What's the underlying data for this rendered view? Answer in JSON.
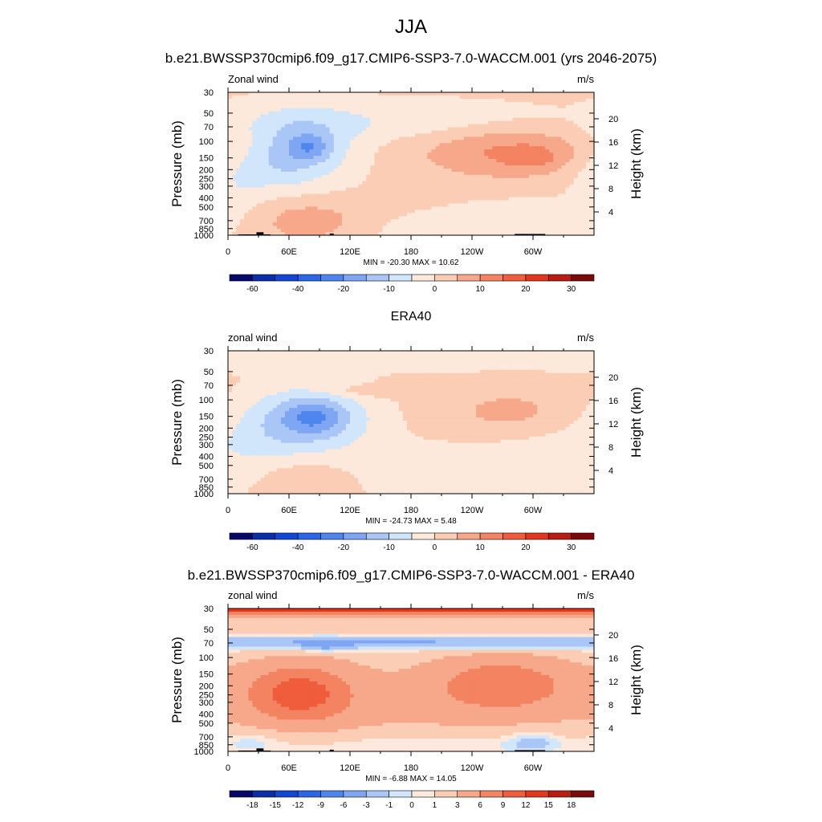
{
  "figure": {
    "title": "JJA",
    "subtitle": "b.e21.BWSSP370cmip6.f09_g17.CMIP6-SSP3-7.0-WACCM.001 (yrs 2046-2075)",
    "panel2_title": "ERA40",
    "panel3_title": "b.e21.BWSSP370cmip6.f09_g17.CMIP6-SSP3-7.0-WACCM.001 - ERA40"
  },
  "colors": {
    "palette": [
      "#08086b",
      "#0a2ea8",
      "#1446d6",
      "#2a66e6",
      "#4f86ee",
      "#7ea6f2",
      "#aac6f6",
      "#d2e6fb",
      "#fde8dc",
      "#fbcdb4",
      "#f7a88a",
      "#f38361",
      "#ef5d3c",
      "#e2361e",
      "#b81d14",
      "#7a0a0a"
    ],
    "terrain": "#000000"
  },
  "chart_data": [
    {
      "type": "heatmap",
      "name": "model",
      "left_label": "Zonal wind",
      "right_label": "m/s",
      "ylabel": "Pressure (mb)",
      "ylabel_right": "Height (km)",
      "x_ticks": [
        "0",
        "60E",
        "120E",
        "180",
        "120W",
        "60W"
      ],
      "x_tick_lons": [
        0,
        60,
        120,
        180,
        240,
        300
      ],
      "y_ticks": [
        "30",
        "50",
        "70",
        "100",
        "150",
        "200",
        "250",
        "300",
        "400",
        "500",
        "700",
        "850",
        "1000"
      ],
      "y_tick_values": [
        30,
        50,
        70,
        100,
        150,
        200,
        250,
        300,
        400,
        500,
        700,
        850,
        1000
      ],
      "height_ticks": [
        "4",
        "8",
        "12",
        "16",
        "20"
      ],
      "height_tick_values": [
        4,
        8,
        12,
        16,
        20
      ],
      "xlim": [
        0,
        360
      ],
      "ylim": [
        1000,
        30
      ],
      "stats": "MIN = -20.30  MAX =  10.62",
      "min": -20.3,
      "max": 10.62,
      "colorbar_labels": [
        "-60",
        "-40",
        "-20",
        "-10",
        "0",
        "10",
        "20",
        "30"
      ],
      "colorbar_levels": [
        -70,
        -60,
        -50,
        -40,
        -30,
        -20,
        -15,
        -10,
        -5,
        0,
        5,
        10,
        15,
        20,
        25,
        30
      ],
      "field": {
        "background": 1,
        "features": [
          {
            "lon": 70,
            "p": 120,
            "dlon": 38,
            "dlp": 0.62,
            "amp": -12
          },
          {
            "lon": 80,
            "p": 115,
            "dlon": 14,
            "dlp": 0.22,
            "amp": -9
          },
          {
            "lon": 40,
            "p": 200,
            "dlon": 30,
            "dlp": 0.45,
            "amp": -4
          },
          {
            "lon": 150,
            "p": 60,
            "dlon": 130,
            "dlp": 0.35,
            "amp": -5
          },
          {
            "lon": 275,
            "p": 130,
            "dlon": 60,
            "dlp": 0.45,
            "amp": 10
          },
          {
            "lon": 300,
            "p": 150,
            "dlon": 16,
            "dlp": 0.18,
            "amp": 5
          },
          {
            "lon": 75,
            "p": 700,
            "dlon": 40,
            "dlp": 0.4,
            "amp": 7
          },
          {
            "lon": 300,
            "p": 700,
            "dlon": 60,
            "dlp": 0.35,
            "amp": -5
          },
          {
            "lon": 190,
            "p": 900,
            "dlon": 40,
            "dlp": 0.25,
            "amp": -3
          },
          {
            "lon": 5,
            "p": 280,
            "dlon": 20,
            "dlp": 0.5,
            "amp": -4
          }
        ]
      }
    },
    {
      "type": "heatmap",
      "name": "era40",
      "left_label": "zonal wind",
      "right_label": "m/s",
      "ylabel": "Pressure (mb)",
      "ylabel_right": "Height (km)",
      "x_ticks": [
        "0",
        "60E",
        "120E",
        "180",
        "120W",
        "60W"
      ],
      "x_tick_lons": [
        0,
        60,
        120,
        180,
        240,
        300
      ],
      "y_ticks": [
        "30",
        "50",
        "70",
        "100",
        "150",
        "200",
        "250",
        "300",
        "400",
        "500",
        "700",
        "850",
        "1000"
      ],
      "y_tick_values": [
        30,
        50,
        70,
        100,
        150,
        200,
        250,
        300,
        400,
        500,
        700,
        850,
        1000
      ],
      "height_ticks": [
        "4",
        "8",
        "12",
        "16",
        "20"
      ],
      "height_tick_values": [
        4,
        8,
        12,
        16,
        20
      ],
      "xlim": [
        0,
        360
      ],
      "ylim": [
        1000,
        30
      ],
      "stats": "MIN = -24.73  MAX =   5.48",
      "min": -24.73,
      "max": 5.48,
      "colorbar_labels": [
        "-60",
        "-40",
        "-20",
        "-10",
        "0",
        "10",
        "20",
        "30"
      ],
      "colorbar_levels": [
        -70,
        -60,
        -50,
        -40,
        -30,
        -20,
        -15,
        -10,
        -5,
        0,
        5,
        10,
        15,
        20,
        25,
        30
      ],
      "field": {
        "background": 1,
        "features": [
          {
            "lon": 180,
            "p": 36,
            "dlon": 400,
            "dlp": 0.2,
            "amp": -5
          },
          {
            "lon": 80,
            "p": 160,
            "dlon": 42,
            "dlp": 0.55,
            "amp": -15
          },
          {
            "lon": 85,
            "p": 150,
            "dlon": 18,
            "dlp": 0.25,
            "amp": -8
          },
          {
            "lon": 30,
            "p": 300,
            "dlon": 40,
            "dlp": 0.6,
            "amp": -4
          },
          {
            "lon": 280,
            "p": 140,
            "dlon": 50,
            "dlp": 0.45,
            "amp": 6
          },
          {
            "lon": 310,
            "p": 500,
            "dlon": 50,
            "dlp": 0.8,
            "amp": -4
          },
          {
            "lon": 200,
            "p": 600,
            "dlon": 60,
            "dlp": 0.6,
            "amp": -3
          },
          {
            "lon": 70,
            "p": 700,
            "dlon": 30,
            "dlp": 0.4,
            "amp": 4
          },
          {
            "lon": 150,
            "p": 80,
            "dlon": 40,
            "dlp": 0.1,
            "amp": 5
          }
        ]
      }
    },
    {
      "type": "heatmap",
      "name": "difference",
      "left_label": "zonal wind",
      "right_label": "m/s",
      "ylabel": "Pressure (mb)",
      "ylabel_right": "Height (km)",
      "x_ticks": [
        "0",
        "60E",
        "120E",
        "180",
        "120W",
        "60W"
      ],
      "x_tick_lons": [
        0,
        60,
        120,
        180,
        240,
        300
      ],
      "y_ticks": [
        "30",
        "50",
        "70",
        "100",
        "150",
        "200",
        "250",
        "300",
        "400",
        "500",
        "700",
        "850",
        "1000"
      ],
      "y_tick_values": [
        30,
        50,
        70,
        100,
        150,
        200,
        250,
        300,
        400,
        500,
        700,
        850,
        1000
      ],
      "height_ticks": [
        "4",
        "8",
        "12",
        "16",
        "20"
      ],
      "height_tick_values": [
        4,
        8,
        12,
        16,
        20
      ],
      "xlim": [
        0,
        360
      ],
      "ylim": [
        1000,
        30
      ],
      "stats": "MIN =  -6.88  MAX =  14.05",
      "min": -6.88,
      "max": 14.05,
      "colorbar_labels": [
        "-18",
        "-15",
        "-12",
        "-9",
        "-6",
        "-3",
        "-1",
        "0",
        "1",
        "3",
        "6",
        "9",
        "12",
        "15",
        "18"
      ],
      "colorbar_levels": [
        -21,
        -18,
        -15,
        -12,
        -9,
        -6,
        -3,
        -1,
        0,
        1,
        3,
        6,
        9,
        12,
        15,
        18
      ],
      "field": {
        "background": 1.5,
        "features": [
          {
            "lon": 180,
            "p": 30,
            "dlon": 600,
            "dlp": 0.12,
            "amp": 12
          },
          {
            "lon": 180,
            "p": 70,
            "dlon": 600,
            "dlp": 0.12,
            "amp": -5
          },
          {
            "lon": 95,
            "p": 75,
            "dlon": 14,
            "dlp": 0.12,
            "amp": -3
          },
          {
            "lon": 70,
            "p": 240,
            "dlon": 35,
            "dlp": 0.5,
            "amp": 8
          },
          {
            "lon": 270,
            "p": 190,
            "dlon": 45,
            "dlp": 0.45,
            "amp": 6
          },
          {
            "lon": 180,
            "p": 300,
            "dlon": 200,
            "dlp": 0.7,
            "amp": 2
          },
          {
            "lon": 180,
            "p": 900,
            "dlon": 100,
            "dlp": 0.25,
            "amp": -2
          },
          {
            "lon": 300,
            "p": 800,
            "dlon": 20,
            "dlp": 0.2,
            "amp": -3
          },
          {
            "lon": 20,
            "p": 800,
            "dlon": 25,
            "dlp": 0.2,
            "amp": -2
          }
        ]
      }
    }
  ],
  "topography": [
    {
      "lon0": 10,
      "lon1": 42,
      "p": 980
    },
    {
      "lon0": 28,
      "lon1": 35,
      "p": 930
    },
    {
      "lon0": 100,
      "lon1": 104,
      "p": 960
    },
    {
      "lon0": 282,
      "lon1": 312,
      "p": 970
    }
  ]
}
